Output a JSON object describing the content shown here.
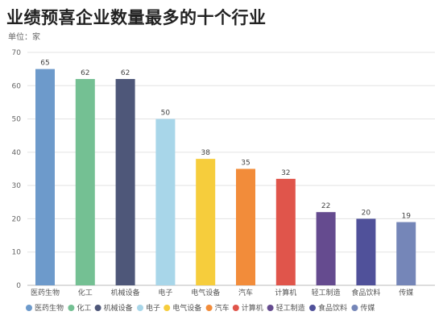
{
  "title": "业绩预喜企业数量最多的十个行业",
  "subtitle": "单位：家",
  "chart_data": {
    "type": "bar",
    "categories": [
      "医药生物",
      "化工",
      "机械设备",
      "电子",
      "电气设备",
      "汽车",
      "计算机",
      "轻工制造",
      "食品饮料",
      "传媒"
    ],
    "values": [
      65,
      62,
      62,
      50,
      38,
      35,
      32,
      22,
      20,
      19
    ],
    "colors": [
      "#6d9acb",
      "#74c093",
      "#4e5779",
      "#a8d6e9",
      "#f6cd3c",
      "#f28c3a",
      "#e0554b",
      "#654b8f",
      "#50519a",
      "#7586b8"
    ],
    "ylim": [
      0,
      70
    ],
    "yticks": [
      0,
      10,
      20,
      30,
      40,
      50,
      60,
      70
    ],
    "grid": true,
    "legend_position": "bottom",
    "data_labels": true
  }
}
